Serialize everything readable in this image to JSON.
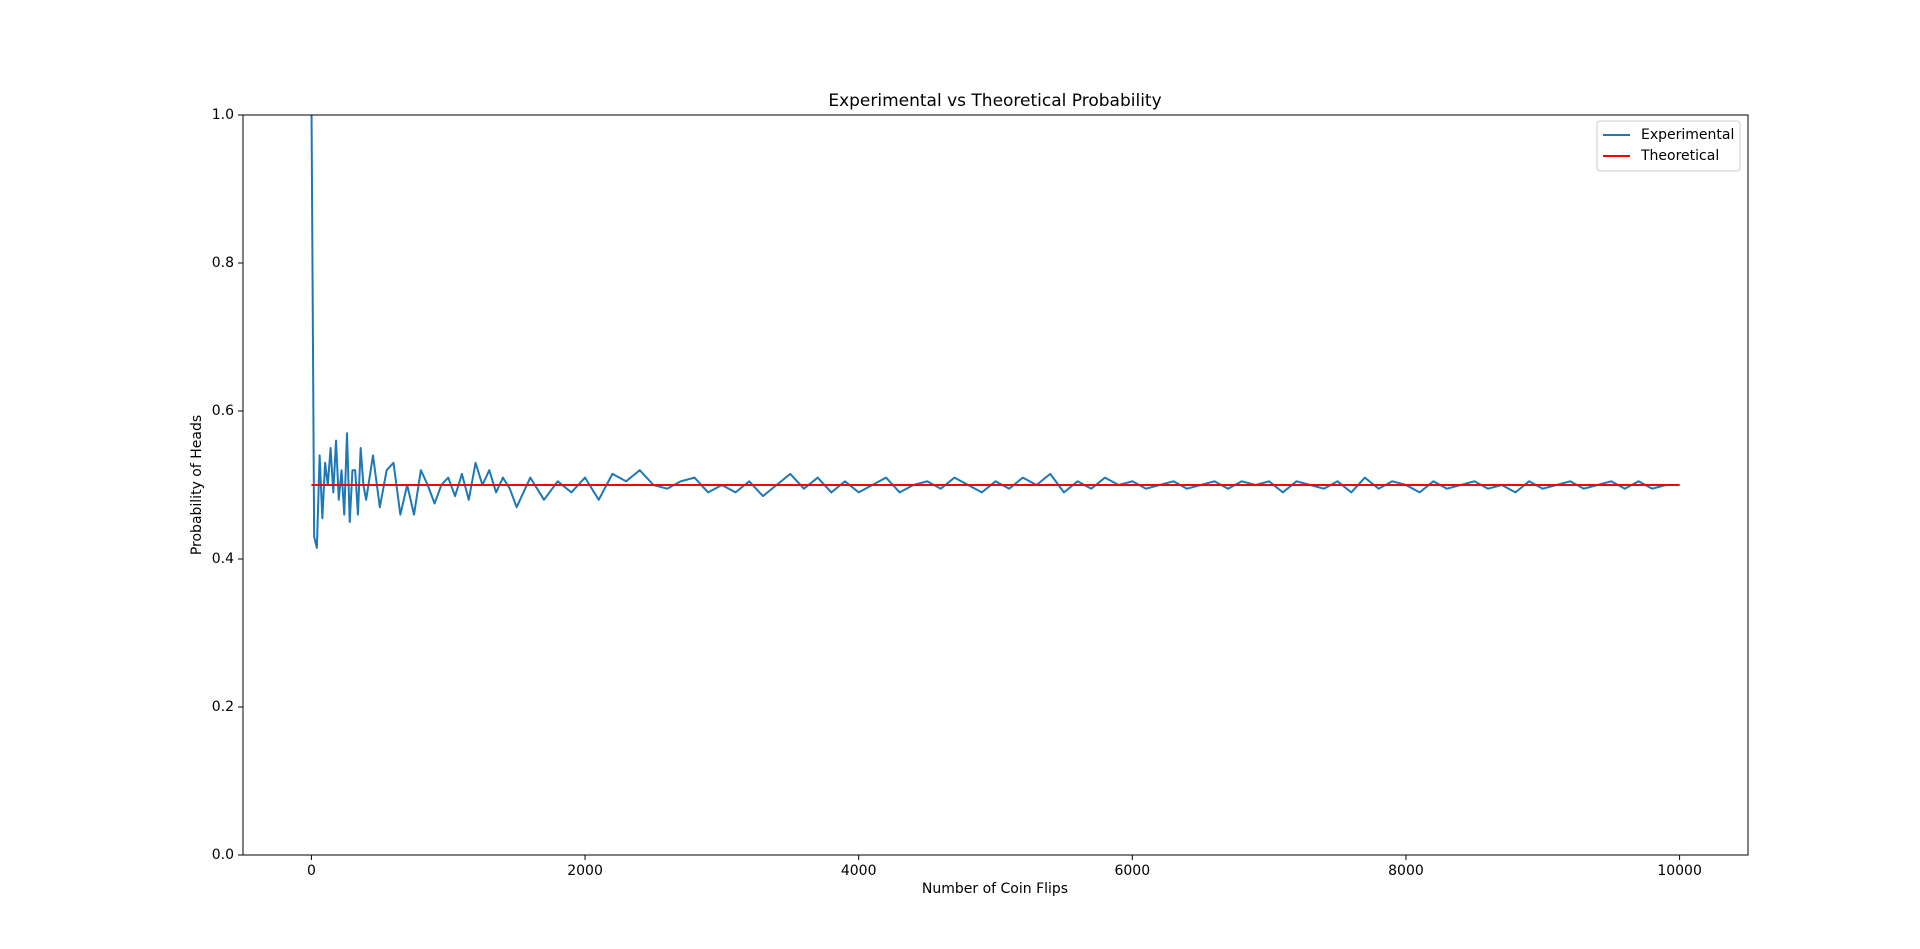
{
  "chart_data": {
    "type": "line",
    "title": "Experimental vs Theoretical Probability",
    "xlabel": "Number of Coin Flips",
    "ylabel": "Probability of Heads",
    "xlim": [
      -500,
      10500
    ],
    "ylim": [
      0,
      1
    ],
    "xticks": [
      0,
      2000,
      4000,
      6000,
      8000,
      10000
    ],
    "yticks": [
      {
        "value": 0,
        "label": "0.0"
      },
      0.2,
      0.4,
      0.6,
      0.8,
      {
        "value": 1,
        "label": "1.0"
      }
    ],
    "grid": false,
    "legend": "upper right",
    "series": [
      {
        "name": "Experimental",
        "color": "#1f77b4",
        "x": [
          1,
          20,
          40,
          60,
          80,
          100,
          120,
          140,
          160,
          180,
          200,
          220,
          240,
          260,
          280,
          300,
          320,
          340,
          360,
          380,
          400,
          450,
          500,
          550,
          600,
          650,
          700,
          750,
          800,
          850,
          900,
          950,
          1000,
          1050,
          1100,
          1150,
          1200,
          1250,
          1300,
          1350,
          1400,
          1450,
          1500,
          1600,
          1700,
          1800,
          1900,
          2000,
          2100,
          2200,
          2300,
          2400,
          2500,
          2600,
          2700,
          2800,
          2900,
          3000,
          3100,
          3200,
          3300,
          3400,
          3500,
          3600,
          3700,
          3800,
          3900,
          4000,
          4100,
          4200,
          4300,
          4400,
          4500,
          4600,
          4700,
          4800,
          4900,
          5000,
          5100,
          5200,
          5300,
          5400,
          5500,
          5600,
          5700,
          5800,
          5900,
          6000,
          6100,
          6200,
          6300,
          6400,
          6500,
          6600,
          6700,
          6800,
          6900,
          7000,
          7100,
          7200,
          7300,
          7400,
          7500,
          7600,
          7700,
          7800,
          7900,
          8000,
          8100,
          8200,
          8300,
          8400,
          8500,
          8600,
          8700,
          8800,
          8900,
          9000,
          9100,
          9200,
          9300,
          9400,
          9500,
          9600,
          9700,
          9800,
          9900,
          10000
        ],
        "values": [
          1.0,
          0.43,
          0.415,
          0.54,
          0.455,
          0.53,
          0.5,
          0.55,
          0.49,
          0.56,
          0.48,
          0.52,
          0.46,
          0.57,
          0.45,
          0.52,
          0.52,
          0.46,
          0.55,
          0.5,
          0.48,
          0.54,
          0.47,
          0.52,
          0.53,
          0.46,
          0.5,
          0.46,
          0.52,
          0.5,
          0.475,
          0.5,
          0.51,
          0.485,
          0.515,
          0.48,
          0.53,
          0.5,
          0.52,
          0.49,
          0.51,
          0.495,
          0.47,
          0.51,
          0.48,
          0.505,
          0.49,
          0.51,
          0.48,
          0.515,
          0.505,
          0.52,
          0.5,
          0.495,
          0.505,
          0.51,
          0.49,
          0.5,
          0.49,
          0.505,
          0.485,
          0.5,
          0.515,
          0.495,
          0.51,
          0.49,
          0.505,
          0.49,
          0.5,
          0.51,
          0.49,
          0.5,
          0.505,
          0.495,
          0.51,
          0.5,
          0.49,
          0.505,
          0.495,
          0.51,
          0.5,
          0.515,
          0.49,
          0.505,
          0.495,
          0.51,
          0.5,
          0.505,
          0.495,
          0.5,
          0.505,
          0.495,
          0.5,
          0.505,
          0.495,
          0.505,
          0.5,
          0.505,
          0.49,
          0.505,
          0.5,
          0.495,
          0.505,
          0.49,
          0.51,
          0.495,
          0.505,
          0.5,
          0.49,
          0.505,
          0.495,
          0.5,
          0.505,
          0.495,
          0.5,
          0.49,
          0.505,
          0.495,
          0.5,
          0.505,
          0.495,
          0.5,
          0.505,
          0.495,
          0.505,
          0.495,
          0.5,
          0.5
        ]
      },
      {
        "name": "Theoretical",
        "color": "#ff0000",
        "x": [
          0,
          10000
        ],
        "values": [
          0.5,
          0.5
        ]
      }
    ]
  }
}
